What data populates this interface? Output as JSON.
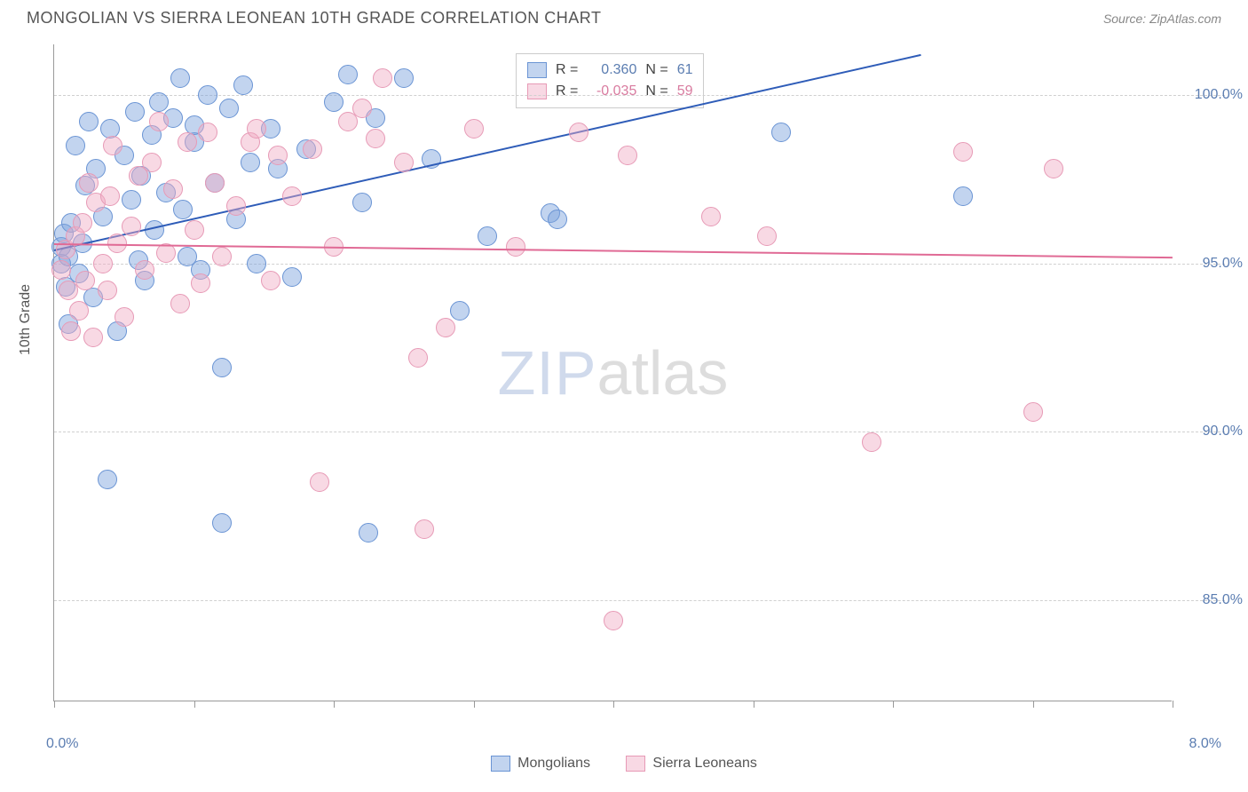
{
  "title": "MONGOLIAN VS SIERRA LEONEAN 10TH GRADE CORRELATION CHART",
  "source_label": "Source: ZipAtlas.com",
  "y_axis_title": "10th Grade",
  "watermark": {
    "part1": "ZIP",
    "part2": "atlas"
  },
  "chart": {
    "type": "scatter",
    "background_color": "#ffffff",
    "grid_color": "#d0d0d0",
    "axis_color": "#999999",
    "label_color": "#5b7db1",
    "x_range": [
      0.0,
      8.0
    ],
    "y_range": [
      82.0,
      101.5
    ],
    "x_ticks": [
      0.0,
      1.0,
      2.0,
      3.0,
      4.0,
      5.0,
      6.0,
      7.0,
      8.0
    ],
    "x_tick_labels": {
      "0": "0.0%",
      "8": "8.0%"
    },
    "y_ticks": [
      85.0,
      90.0,
      95.0,
      100.0
    ],
    "y_tick_labels": [
      "85.0%",
      "90.0%",
      "95.0%",
      "100.0%"
    ],
    "series": [
      {
        "name": "Mongolians",
        "fill_color": "rgba(120,160,220,0.45)",
        "stroke_color": "#6a94d4",
        "trend_color": "#2e5cb8",
        "R": "0.360",
        "N": "61",
        "trend": {
          "x1": 0.0,
          "y1": 95.4,
          "x2": 6.2,
          "y2": 101.2
        },
        "marker_radius": 11,
        "points": [
          [
            0.05,
            95.5
          ],
          [
            0.05,
            95.0
          ],
          [
            0.07,
            95.9
          ],
          [
            0.08,
            94.3
          ],
          [
            0.1,
            93.2
          ],
          [
            0.1,
            95.2
          ],
          [
            0.12,
            96.2
          ],
          [
            0.15,
            98.5
          ],
          [
            0.18,
            94.7
          ],
          [
            0.2,
            95.6
          ],
          [
            0.22,
            97.3
          ],
          [
            0.25,
            99.2
          ],
          [
            0.28,
            94.0
          ],
          [
            0.3,
            97.8
          ],
          [
            0.35,
            96.4
          ],
          [
            0.38,
            88.6
          ],
          [
            0.4,
            99.0
          ],
          [
            0.45,
            93.0
          ],
          [
            0.5,
            98.2
          ],
          [
            0.55,
            96.9
          ],
          [
            0.58,
            99.5
          ],
          [
            0.6,
            95.1
          ],
          [
            0.62,
            97.6
          ],
          [
            0.65,
            94.5
          ],
          [
            0.7,
            98.8
          ],
          [
            0.72,
            96.0
          ],
          [
            0.75,
            99.8
          ],
          [
            0.8,
            97.1
          ],
          [
            0.85,
            99.3
          ],
          [
            0.9,
            100.5
          ],
          [
            0.92,
            96.6
          ],
          [
            0.95,
            95.2
          ],
          [
            1.0,
            98.6
          ],
          [
            1.0,
            99.1
          ],
          [
            1.05,
            94.8
          ],
          [
            1.1,
            100.0
          ],
          [
            1.15,
            97.4
          ],
          [
            1.2,
            87.3
          ],
          [
            1.2,
            91.9
          ],
          [
            1.25,
            99.6
          ],
          [
            1.3,
            96.3
          ],
          [
            1.35,
            100.3
          ],
          [
            1.4,
            98.0
          ],
          [
            1.45,
            95.0
          ],
          [
            1.55,
            99.0
          ],
          [
            1.6,
            97.8
          ],
          [
            1.7,
            94.6
          ],
          [
            1.8,
            98.4
          ],
          [
            2.0,
            99.8
          ],
          [
            2.1,
            100.6
          ],
          [
            2.2,
            96.8
          ],
          [
            2.25,
            87.0
          ],
          [
            2.3,
            99.3
          ],
          [
            2.5,
            100.5
          ],
          [
            2.7,
            98.1
          ],
          [
            2.9,
            93.6
          ],
          [
            3.1,
            95.8
          ],
          [
            3.55,
            96.5
          ],
          [
            3.6,
            96.3
          ],
          [
            5.2,
            98.9
          ],
          [
            6.5,
            97.0
          ]
        ]
      },
      {
        "name": "Sierra Leoneans",
        "fill_color": "rgba(240,170,195,0.45)",
        "stroke_color": "#e79ab6",
        "trend_color": "#e06a95",
        "R": "-0.035",
        "N": "59",
        "trend": {
          "x1": 0.0,
          "y1": 95.6,
          "x2": 8.0,
          "y2": 95.2
        },
        "marker_radius": 11,
        "points": [
          [
            0.05,
            94.8
          ],
          [
            0.08,
            95.4
          ],
          [
            0.1,
            94.2
          ],
          [
            0.12,
            93.0
          ],
          [
            0.15,
            95.8
          ],
          [
            0.18,
            93.6
          ],
          [
            0.2,
            96.2
          ],
          [
            0.22,
            94.5
          ],
          [
            0.25,
            97.4
          ],
          [
            0.28,
            92.8
          ],
          [
            0.3,
            96.8
          ],
          [
            0.35,
            95.0
          ],
          [
            0.38,
            94.2
          ],
          [
            0.4,
            97.0
          ],
          [
            0.42,
            98.5
          ],
          [
            0.45,
            95.6
          ],
          [
            0.5,
            93.4
          ],
          [
            0.55,
            96.1
          ],
          [
            0.6,
            97.6
          ],
          [
            0.65,
            94.8
          ],
          [
            0.7,
            98.0
          ],
          [
            0.75,
            99.2
          ],
          [
            0.8,
            95.3
          ],
          [
            0.85,
            97.2
          ],
          [
            0.9,
            93.8
          ],
          [
            0.95,
            98.6
          ],
          [
            1.0,
            96.0
          ],
          [
            1.05,
            94.4
          ],
          [
            1.1,
            98.9
          ],
          [
            1.15,
            97.4
          ],
          [
            1.2,
            95.2
          ],
          [
            1.3,
            96.7
          ],
          [
            1.4,
            98.6
          ],
          [
            1.45,
            99.0
          ],
          [
            1.55,
            94.5
          ],
          [
            1.6,
            98.2
          ],
          [
            1.7,
            97.0
          ],
          [
            1.85,
            98.4
          ],
          [
            1.9,
            88.5
          ],
          [
            2.0,
            95.5
          ],
          [
            2.1,
            99.2
          ],
          [
            2.2,
            99.6
          ],
          [
            2.3,
            98.7
          ],
          [
            2.35,
            100.5
          ],
          [
            2.5,
            98.0
          ],
          [
            2.6,
            92.2
          ],
          [
            2.65,
            87.1
          ],
          [
            2.8,
            93.1
          ],
          [
            3.0,
            99.0
          ],
          [
            3.3,
            95.5
          ],
          [
            3.75,
            98.9
          ],
          [
            4.0,
            84.4
          ],
          [
            4.1,
            98.2
          ],
          [
            4.7,
            96.4
          ],
          [
            5.1,
            95.8
          ],
          [
            5.85,
            89.7
          ],
          [
            6.5,
            98.3
          ],
          [
            7.0,
            90.6
          ],
          [
            7.15,
            97.8
          ]
        ]
      }
    ],
    "legend_box": {
      "R_label": "R =",
      "N_label": "N ="
    },
    "bottom_legend": [
      "Mongolians",
      "Sierra Leoneans"
    ]
  }
}
